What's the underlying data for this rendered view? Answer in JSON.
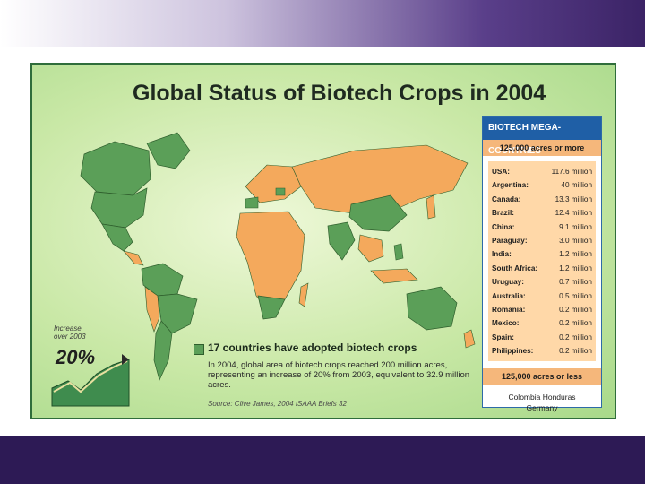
{
  "title": "Global Status of Biotech Crops in 2004",
  "panel": {
    "heading": "BIOTECH MEGA-COUNTRIES",
    "threshold_high": "125,000 acres or more",
    "countries": [
      {
        "name": "USA:",
        "value": "117.6 million"
      },
      {
        "name": "Argentina:",
        "value": "40 million"
      },
      {
        "name": "Canada:",
        "value": "13.3 million"
      },
      {
        "name": "Brazil:",
        "value": "12.4 million"
      },
      {
        "name": "China:",
        "value": "9.1 million"
      },
      {
        "name": "Paraguay:",
        "value": "3.0 million"
      },
      {
        "name": "India:",
        "value": "1.2 million"
      },
      {
        "name": "South Africa:",
        "value": "1.2 million"
      },
      {
        "name": "Uruguay:",
        "value": "0.7 million"
      },
      {
        "name": "Australia:",
        "value": "0.5 million"
      },
      {
        "name": "Romania:",
        "value": "0.2 million"
      },
      {
        "name": "Mexico:",
        "value": "0.2 million"
      },
      {
        "name": "Spain:",
        "value": "0.2 million"
      },
      {
        "name": "Philippines:",
        "value": "0.2 million"
      }
    ],
    "threshold_low": "125,000 acres or less",
    "small_line1": "Colombia   Honduras",
    "small_line2": "Germany"
  },
  "legend": "17 countries have adopted biotech crops",
  "description": "In 2004, global area of biotech crops reached 200 million acres, representing an increase of 20% from 2003, equivalent to 32.9 million acres.",
  "source": "Source: Clive James, 2004 ISAAA Briefs 32",
  "increase": {
    "label_line1": "Increase",
    "label_line2": "over 2003",
    "percent": "20%"
  },
  "colors": {
    "biotech": "#5b9f58",
    "other": "#f4a95c",
    "border": "#2f6d3b",
    "panel_head": "#1f5fa6"
  }
}
